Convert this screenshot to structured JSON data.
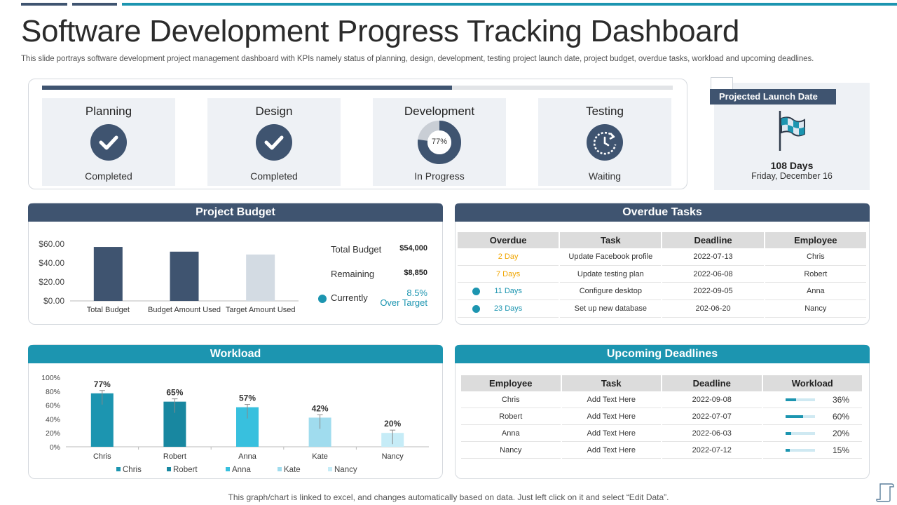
{
  "title": "Software Development Progress Tracking Dashboard",
  "subtitle": "This slide portrays software development project management dashboard with KPIs namely status of planning, design, development, testing project launch date, project budget, overdue tasks, workload and upcoming deadlines.",
  "colors": {
    "dark": "#3f5470",
    "teal": "#1c95b0",
    "amber": "#f0a500",
    "light_panel": "#eef1f5"
  },
  "overall_progress_percent": 65,
  "stages": [
    {
      "title": "Planning",
      "status": "Completed",
      "icon": "check-icon"
    },
    {
      "title": "Design",
      "status": "Completed",
      "icon": "check-icon"
    },
    {
      "title": "Development",
      "status": "In Progress",
      "icon": "donut-progress-icon",
      "percent_label": "77%",
      "percent": 77
    },
    {
      "title": "Testing",
      "status": "Waiting",
      "icon": "clock-refresh-icon"
    }
  ],
  "launch": {
    "header": "Projected Launch Date",
    "days": "108 Days",
    "date": "Friday, December 16",
    "icon": "flag-icon"
  },
  "budget": {
    "header": "Project Budget",
    "total_label": "Total Budget",
    "total_value": "$54,000",
    "remaining_label": "Remaining",
    "remaining_value": "$8,850",
    "currently_label": "Currently",
    "currently_value": "8.5%",
    "currently_note": "Over Target"
  },
  "overdue": {
    "header": "Overdue Tasks",
    "columns": [
      "Overdue",
      "Task",
      "Deadline",
      "Employee"
    ],
    "rows": [
      {
        "overdue": "2 Day",
        "task": "Update Facebook profile",
        "deadline": "2022-07-13",
        "employee": "Chris",
        "color": "#f0a500",
        "dot": false
      },
      {
        "overdue": "7 Days",
        "task": "Update testing plan",
        "deadline": "2022-06-08",
        "employee": "Robert",
        "color": "#f0a500",
        "dot": false
      },
      {
        "overdue": "11 Days",
        "task": "Configure desktop",
        "deadline": "2022-09-05",
        "employee": "Anna",
        "color": "#1c95b0",
        "dot": true
      },
      {
        "overdue": "23 Days",
        "task": "Set up new database",
        "deadline": "202-06-20",
        "employee": "Nancy",
        "color": "#1c95b0",
        "dot": true
      }
    ]
  },
  "workload_section": {
    "header": "Workload"
  },
  "upcoming": {
    "header": "Upcoming Deadlines",
    "columns": [
      "Employee",
      "Task",
      "Deadline",
      "Workload"
    ],
    "rows": [
      {
        "employee": "Chris",
        "task": "Add Text Here",
        "deadline": "2022-09-08",
        "workload_label": "36%",
        "workload": 0.36
      },
      {
        "employee": "Robert",
        "task": "Add Text Here",
        "deadline": "2022-07-07",
        "workload_label": "60%",
        "workload": 0.6
      },
      {
        "employee": "Anna",
        "task": "Add Text Here",
        "deadline": "2022-06-03",
        "workload_label": "20%",
        "workload": 0.2
      },
      {
        "employee": "Nancy",
        "task": "Add Text Here",
        "deadline": "2022-07-12",
        "workload_label": "15%",
        "workload": 0.15
      }
    ]
  },
  "footer_note": "This graph/chart is linked to excel,  and changes automatically based on data. Just left click on it and select “Edit  Data”.",
  "chart_data": [
    {
      "type": "bar",
      "title": "Project Budget",
      "categories": [
        "Total Budget",
        "Budget Amount Used",
        "Target Amount Used"
      ],
      "values": [
        57,
        52,
        49
      ],
      "ylim": [
        0,
        60
      ],
      "yticks": [
        "$0.00",
        "$20.00",
        "$40.00",
        "$60.00"
      ],
      "ytick_values": [
        0,
        20,
        40,
        60
      ],
      "bar_colors": [
        "#3f5470",
        "#3f5470",
        "#d3dbe3"
      ],
      "xlabel": "",
      "ylabel": ""
    },
    {
      "type": "bar",
      "title": "Workload",
      "categories": [
        "Chris",
        "Robert",
        "Anna",
        "Kate",
        "Nancy"
      ],
      "values": [
        77,
        65,
        57,
        42,
        20
      ],
      "value_labels": [
        "77%",
        "65%",
        "57%",
        "42%",
        "20%"
      ],
      "ylim": [
        0,
        100
      ],
      "yticks": [
        "0%",
        "20%",
        "40%",
        "60%",
        "80%",
        "100%"
      ],
      "ytick_values": [
        0,
        20,
        40,
        60,
        80,
        100
      ],
      "bar_colors": [
        "#1c95b0",
        "#1887a0",
        "#38c0de",
        "#a0dcee",
        "#c6ecf7"
      ],
      "legend": [
        "Chris",
        "Robert",
        "Anna",
        "Kate",
        "Nancy"
      ],
      "error_bars": true,
      "xlabel": "",
      "ylabel": ""
    }
  ]
}
